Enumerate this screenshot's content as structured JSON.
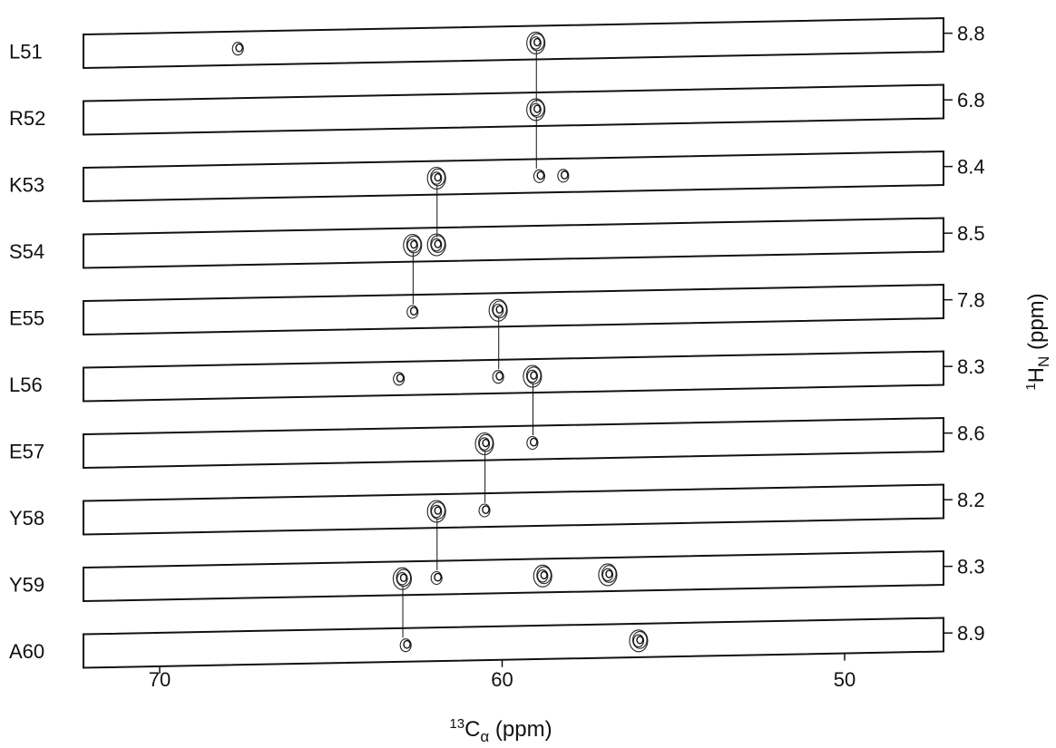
{
  "chart_data": {
    "type": "scatter",
    "description_kind": "NMR strip plot",
    "xlabel": {
      "prefix_sup": "13",
      "base": "C",
      "sub": "α",
      "unit": " (ppm)"
    },
    "ylabel": {
      "prefix_sup": "1",
      "base": "H",
      "sub": "N",
      "unit": " (ppm)"
    },
    "x_axis": {
      "reversed": true,
      "ticks": [
        70,
        60,
        50
      ]
    },
    "strips": [
      {
        "residue": "L51",
        "hn_ppm": "8.8",
        "peaks": [
          {
            "ca": 67.7,
            "major": false
          },
          {
            "ca": 59.0,
            "major": true
          }
        ]
      },
      {
        "residue": "R52",
        "hn_ppm": "6.8",
        "peaks": [
          {
            "ca": 59.0,
            "major": true
          }
        ]
      },
      {
        "residue": "K53",
        "hn_ppm": "8.4",
        "peaks": [
          {
            "ca": 61.9,
            "major": true
          },
          {
            "ca": 58.9,
            "major": false
          },
          {
            "ca": 58.2,
            "major": false
          }
        ]
      },
      {
        "residue": "S54",
        "hn_ppm": "8.5",
        "peaks": [
          {
            "ca": 62.6,
            "major": true
          },
          {
            "ca": 61.9,
            "major": true
          }
        ]
      },
      {
        "residue": "E55",
        "hn_ppm": "7.8",
        "peaks": [
          {
            "ca": 62.6,
            "major": false
          },
          {
            "ca": 60.1,
            "major": true
          }
        ]
      },
      {
        "residue": "L56",
        "hn_ppm": "8.3",
        "peaks": [
          {
            "ca": 63.0,
            "major": false
          },
          {
            "ca": 60.1,
            "major": false
          },
          {
            "ca": 59.1,
            "major": true
          }
        ]
      },
      {
        "residue": "E57",
        "hn_ppm": "8.6",
        "peaks": [
          {
            "ca": 60.5,
            "major": true
          },
          {
            "ca": 59.1,
            "major": false
          }
        ]
      },
      {
        "residue": "Y58",
        "hn_ppm": "8.2",
        "peaks": [
          {
            "ca": 61.9,
            "major": true
          },
          {
            "ca": 60.5,
            "major": false
          }
        ]
      },
      {
        "residue": "Y59",
        "hn_ppm": "8.3",
        "peaks": [
          {
            "ca": 62.9,
            "major": true
          },
          {
            "ca": 61.9,
            "major": false
          },
          {
            "ca": 58.8,
            "major": true
          },
          {
            "ca": 56.9,
            "major": true
          }
        ]
      },
      {
        "residue": "A60",
        "hn_ppm": "8.9",
        "peaks": [
          {
            "ca": 62.8,
            "major": false
          },
          {
            "ca": 56.0,
            "major": true
          }
        ]
      }
    ],
    "sequential_connectivities": [
      {
        "ca": 59.0,
        "from": "L51",
        "to": "R52"
      },
      {
        "ca": 59.0,
        "from": "R52",
        "to": "K53"
      },
      {
        "ca": 61.9,
        "from": "K53",
        "to": "S54"
      },
      {
        "ca": 62.6,
        "from": "S54",
        "to": "E55"
      },
      {
        "ca": 60.1,
        "from": "E55",
        "to": "L56"
      },
      {
        "ca": 59.1,
        "from": "L56",
        "to": "E57"
      },
      {
        "ca": 60.5,
        "from": "E57",
        "to": "Y58"
      },
      {
        "ca": 61.9,
        "from": "Y58",
        "to": "Y59"
      },
      {
        "ca": 62.9,
        "from": "Y59",
        "to": "A60"
      }
    ]
  }
}
